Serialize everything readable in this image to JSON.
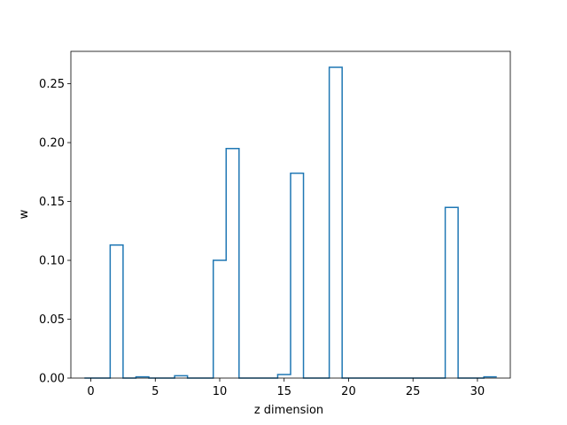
{
  "chart_data": {
    "type": "step",
    "title": "",
    "xlabel": "z dimension",
    "ylabel": "w",
    "xlim": [
      -1.55,
      32.55
    ],
    "ylim": [
      0,
      0.2775
    ],
    "x_ticks": [
      0,
      5,
      10,
      15,
      20,
      25,
      30
    ],
    "y_ticks": [
      0.0,
      0.05,
      0.1,
      0.15,
      0.2,
      0.25
    ],
    "y_tick_labels": [
      "0.00",
      "0.05",
      "0.10",
      "0.15",
      "0.20",
      "0.25"
    ],
    "grid": false,
    "series": [
      {
        "color": "#1f77b4",
        "x": [
          0,
          1,
          2,
          3,
          4,
          5,
          6,
          7,
          8,
          9,
          10,
          11,
          12,
          13,
          14,
          15,
          16,
          17,
          18,
          19,
          20,
          21,
          22,
          23,
          24,
          25,
          26,
          27,
          28,
          29,
          30,
          31
        ],
        "values": [
          0,
          0,
          0.113,
          0,
          0.001,
          0,
          0,
          0.002,
          0,
          0,
          0.1,
          0.195,
          0,
          0,
          0,
          0.003,
          0.174,
          0,
          0,
          0.264,
          0,
          0,
          0,
          0,
          0,
          0,
          0,
          0,
          0.145,
          0,
          0,
          0.001
        ]
      }
    ]
  }
}
